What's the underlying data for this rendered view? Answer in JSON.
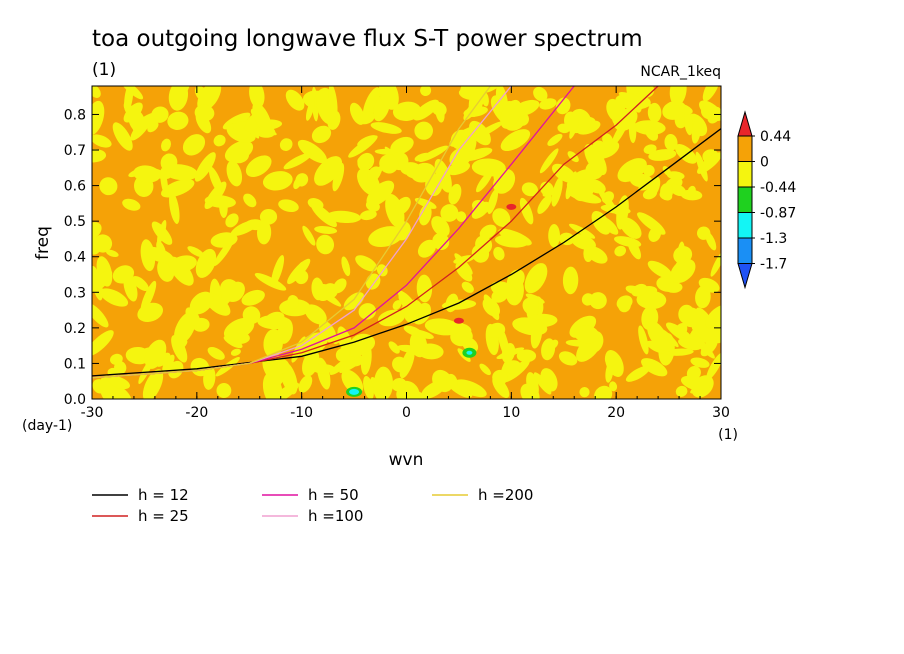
{
  "chart_data": {
    "type": "heatmap",
    "title": "toa outgoing longwave flux S-T power spectrum",
    "title_unit": "(1)",
    "source_label": "NCAR_1keq",
    "xlabel": "wvn",
    "x_unit": "(1)",
    "ylabel": "freq",
    "y_unit": "(day-1)",
    "xlim": [
      -30,
      30
    ],
    "ylim": [
      0,
      0.88
    ],
    "x_ticks": [
      "-30",
      "-20",
      "-10",
      "0",
      "10",
      "20",
      "30"
    ],
    "y_ticks": [
      "0.0",
      "0.1",
      "0.2",
      "0.3",
      "0.4",
      "0.5",
      "0.6",
      "0.7",
      "0.8"
    ],
    "grid": false,
    "colorbar": {
      "labels": [
        "0.44",
        "0",
        "-0.44",
        "-0.87",
        "-1.3",
        "-1.7"
      ],
      "bands": [
        "#e8252b",
        "#f5a207",
        "#f5f50f",
        "#1fd11f",
        "#13f5f5",
        "#1a8ff5",
        "#1f52f5"
      ]
    },
    "dominant_levels": {
      "above_zero": "#f5a207",
      "zero_to_minus_0_44": "#f5f50f"
    },
    "spots": [
      {
        "x": -5,
        "y": 0.02,
        "level": "-1.3"
      },
      {
        "x": 6,
        "y": 0.13,
        "level": "-0.87"
      },
      {
        "x": 10,
        "y": 0.54,
        "level": "0.44"
      },
      {
        "x": 5,
        "y": 0.22,
        "level": "0.44"
      }
    ],
    "series": [
      {
        "name": "h = 12",
        "color": "#000000",
        "points": [
          [
            -30,
            0.065
          ],
          [
            -20,
            0.085
          ],
          [
            -10,
            0.12
          ],
          [
            -5,
            0.16
          ],
          [
            0,
            0.21
          ],
          [
            5,
            0.27
          ],
          [
            10,
            0.35
          ],
          [
            15,
            0.44
          ],
          [
            20,
            0.54
          ],
          [
            25,
            0.65
          ],
          [
            30,
            0.76
          ]
        ]
      },
      {
        "name": "h = 25",
        "color": "#d02020",
        "points": [
          [
            -30,
            0.06
          ],
          [
            -20,
            0.08
          ],
          [
            -15,
            0.1
          ],
          [
            -10,
            0.13
          ],
          [
            -5,
            0.18
          ],
          [
            0,
            0.26
          ],
          [
            5,
            0.37
          ],
          [
            10,
            0.5
          ],
          [
            15,
            0.66
          ],
          [
            20,
            0.77
          ],
          [
            24,
            0.88
          ]
        ]
      },
      {
        "name": "h = 50",
        "color": "#e010a0",
        "points": [
          [
            -30,
            0.06
          ],
          [
            -20,
            0.08
          ],
          [
            -15,
            0.1
          ],
          [
            -10,
            0.14
          ],
          [
            -5,
            0.2
          ],
          [
            0,
            0.32
          ],
          [
            5,
            0.48
          ],
          [
            10,
            0.66
          ],
          [
            16,
            0.88
          ]
        ]
      },
      {
        "name": "h =100",
        "color": "#f0a0d0",
        "points": [
          [
            -30,
            0.06
          ],
          [
            -20,
            0.08
          ],
          [
            -15,
            0.1
          ],
          [
            -10,
            0.15
          ],
          [
            -5,
            0.25
          ],
          [
            0,
            0.45
          ],
          [
            5,
            0.7
          ],
          [
            10,
            0.88
          ]
        ]
      },
      {
        "name": "h =200",
        "color": "#e6cc33",
        "points": [
          [
            -30,
            0.06
          ],
          [
            -20,
            0.08
          ],
          [
            -15,
            0.1
          ],
          [
            -10,
            0.16
          ],
          [
            -5,
            0.28
          ],
          [
            0,
            0.5
          ],
          [
            5,
            0.76
          ],
          [
            8,
            0.88
          ]
        ]
      }
    ]
  }
}
